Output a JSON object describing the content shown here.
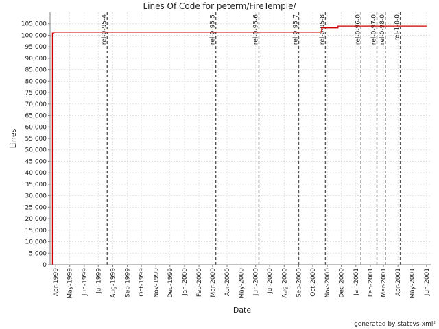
{
  "chart_data": {
    "type": "line",
    "title": "Lines Of Code for peterm/FireTemple/",
    "xlabel": "Date",
    "ylabel": "Lines",
    "footer": "generated by statcvs-xml²",
    "ylim": [
      0,
      110000
    ],
    "xlim": [
      "1999-03-20",
      "2001-06-10"
    ],
    "grid": true,
    "y_ticks": [
      0,
      5000,
      10000,
      15000,
      20000,
      25000,
      30000,
      35000,
      40000,
      45000,
      50000,
      55000,
      60000,
      65000,
      70000,
      75000,
      80000,
      85000,
      90000,
      95000,
      100000,
      105000
    ],
    "y_tick_labels": [
      "0",
      "5,000",
      "10,000",
      "15,000",
      "20,000",
      "25,000",
      "30,000",
      "35,000",
      "40,000",
      "45,000",
      "50,000",
      "55,000",
      "60,000",
      "65,000",
      "70,000",
      "75,000",
      "80,000",
      "85,000",
      "90,000",
      "95,000",
      "100,000",
      "105,000"
    ],
    "x_ticks": [
      {
        "date": "1999-04-01",
        "label": "Apr-1999"
      },
      {
        "date": "1999-05-01",
        "label": "May-1999"
      },
      {
        "date": "1999-06-01",
        "label": "Jun-1999"
      },
      {
        "date": "1999-07-01",
        "label": "Jul-1999"
      },
      {
        "date": "1999-08-01",
        "label": "Aug-1999"
      },
      {
        "date": "1999-09-01",
        "label": "Sep-1999"
      },
      {
        "date": "1999-10-01",
        "label": "Oct-1999"
      },
      {
        "date": "1999-11-01",
        "label": "Nov-1999"
      },
      {
        "date": "1999-12-01",
        "label": "Dec-1999"
      },
      {
        "date": "2000-01-01",
        "label": "Jan-2000"
      },
      {
        "date": "2000-02-01",
        "label": "Feb-2000"
      },
      {
        "date": "2000-03-01",
        "label": "Mar-2000"
      },
      {
        "date": "2000-04-01",
        "label": "Apr-2000"
      },
      {
        "date": "2000-05-01",
        "label": "May-2000"
      },
      {
        "date": "2000-06-01",
        "label": "Jun-2000"
      },
      {
        "date": "2000-07-01",
        "label": "Jul-2000"
      },
      {
        "date": "2000-08-01",
        "label": "Aug-2000"
      },
      {
        "date": "2000-09-01",
        "label": "Sep-2000"
      },
      {
        "date": "2000-10-01",
        "label": "Oct-2000"
      },
      {
        "date": "2000-11-01",
        "label": "Nov-2000"
      },
      {
        "date": "2000-12-01",
        "label": "Dec-2000"
      },
      {
        "date": "2001-01-01",
        "label": "Jan-2001"
      },
      {
        "date": "2001-02-01",
        "label": "Feb-2001"
      },
      {
        "date": "2001-03-01",
        "label": "Mar-2001"
      },
      {
        "date": "2001-04-01",
        "label": "Apr-2001"
      },
      {
        "date": "2001-05-01",
        "label": "May-2001"
      },
      {
        "date": "2001-06-01",
        "label": "Jun-2001"
      }
    ],
    "series": [
      {
        "color": "#cc0000",
        "points": [
          {
            "date": "1999-03-25",
            "value": 0
          },
          {
            "date": "1999-03-25",
            "value": 101000
          },
          {
            "date": "1999-03-28",
            "value": 101000
          },
          {
            "date": "1999-03-28",
            "value": 101400
          },
          {
            "date": "2000-10-20",
            "value": 101400
          },
          {
            "date": "2000-10-20",
            "value": 103200
          },
          {
            "date": "2000-11-24",
            "value": 103200
          },
          {
            "date": "2000-11-24",
            "value": 104000
          },
          {
            "date": "2001-06-01",
            "value": 104000
          }
        ]
      }
    ],
    "markers": [
      {
        "date": "1999-07-20",
        "label": "rel-0-95-4"
      },
      {
        "date": "2000-03-08",
        "label": "rel-0-95-5"
      },
      {
        "date": "2000-06-08",
        "label": "rel-0-95-6"
      },
      {
        "date": "2000-09-01",
        "label": "rel-0-95-7"
      },
      {
        "date": "2000-10-28",
        "label": "rel-0-95-8"
      },
      {
        "date": "2001-01-12",
        "label": "rel-0-96-0"
      },
      {
        "date": "2001-02-15",
        "label": "rel-0-97-0"
      },
      {
        "date": "2001-03-05",
        "label": "rel-0-98-0"
      },
      {
        "date": "2001-04-06",
        "label": "rel-1-0-0"
      }
    ]
  }
}
